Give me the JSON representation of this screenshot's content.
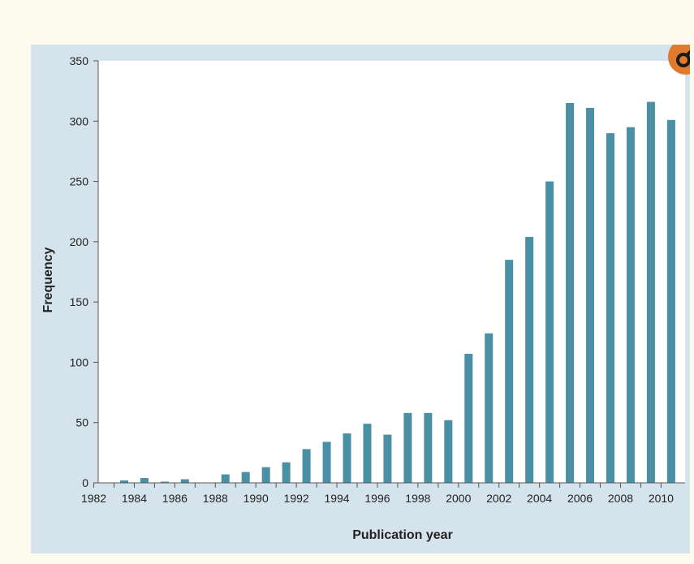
{
  "chart_data": {
    "type": "bar",
    "categories": [
      "1982",
      "1983",
      "1984",
      "1985",
      "1986",
      "1987",
      "1988",
      "1989",
      "1990",
      "1991",
      "1992",
      "1993",
      "1994",
      "1995",
      "1996",
      "1997",
      "1998",
      "1999",
      "2000",
      "2001",
      "2002",
      "2003",
      "2004",
      "2005",
      "2006",
      "2007",
      "2008",
      "2009",
      "2010"
    ],
    "values": [
      0,
      2,
      4,
      1,
      3,
      0,
      7,
      9,
      13,
      17,
      28,
      34,
      41,
      49,
      40,
      58,
      58,
      52,
      107,
      124,
      185,
      204,
      250,
      315,
      311,
      290,
      295,
      316,
      301
    ],
    "xlabel": "Publication year",
    "ylabel": "Frequency",
    "ylim": [
      0,
      350
    ],
    "yticks": [
      0,
      50,
      100,
      150,
      200,
      250,
      300,
      350
    ],
    "xtick_labels": [
      "1982",
      "1984",
      "1986",
      "1988",
      "1990",
      "1992",
      "1994",
      "1996",
      "1998",
      "2000",
      "2002",
      "2004",
      "2006",
      "2008",
      "2010"
    ],
    "bar_color": "#4a90a4",
    "plot_background": "#ffffff",
    "panel_background": "#d5e3ec",
    "grid": false,
    "legend": "none"
  },
  "badge": {
    "icon": "open-access-icon",
    "color": "#e07a2e"
  }
}
